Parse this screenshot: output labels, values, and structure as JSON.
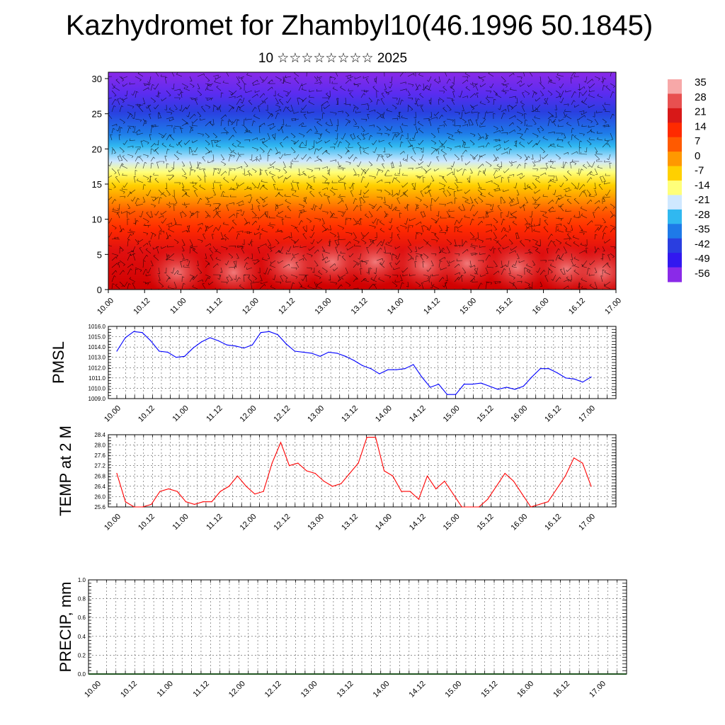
{
  "title": "Kazhydromet for Zhambyl10(46.1996 50.1845)",
  "subtitle": "10 ☆☆☆☆☆☆☆☆ 2025",
  "chart_data": [
    {
      "type": "heatmap",
      "panel": "vertical-profile",
      "ylim": [
        0,
        30
      ],
      "yticks": [
        "0",
        "5",
        "10",
        "15",
        "20",
        "25",
        "30"
      ],
      "xticks": [
        "10.00",
        "10.12",
        "11.00",
        "11.12",
        "12.00",
        "12.12",
        "13.00",
        "13.12",
        "14.00",
        "14.12",
        "15.00",
        "15.12",
        "16.00",
        "16.12",
        "17.00"
      ],
      "colorbar": {
        "labels": [
          "35",
          "28",
          "21",
          "14",
          "7",
          "0",
          "-7",
          "-14",
          "-21",
          "-28",
          "-35",
          "-42",
          "-49",
          "-56"
        ],
        "colors": [
          "#f7a8a8",
          "#e85050",
          "#d81818",
          "#ff2a00",
          "#ff5a00",
          "#ff9800",
          "#ffd000",
          "#ffff7a",
          "#cfe8ff",
          "#30b8f0",
          "#1e7ae8",
          "#2a3ee0",
          "#3218f0",
          "#8a2ae8"
        ]
      }
    },
    {
      "type": "line",
      "panel": "pmsl",
      "ylabel": "PMSL",
      "ylim": [
        1009.0,
        1016.0
      ],
      "yticks": [
        "1016.0",
        "1015.0",
        "1014.0",
        "1013.0",
        "1012.0",
        "1011.0",
        "1010.0",
        "1009.0"
      ],
      "xticks": [
        "10.00",
        "10.12",
        "11.00",
        "11.12",
        "12.00",
        "12.12",
        "13.00",
        "13.12",
        "14.00",
        "14.12",
        "15.00",
        "15.12",
        "16.00",
        "16.12",
        "17.00"
      ],
      "color": "#0000ff",
      "values": [
        1013.6,
        1014.9,
        1015.5,
        1015.4,
        1014.6,
        1013.6,
        1013.5,
        1013.0,
        1013.1,
        1013.9,
        1014.5,
        1014.9,
        1014.6,
        1014.2,
        1014.1,
        1013.9,
        1014.2,
        1015.4,
        1015.5,
        1015.2,
        1014.3,
        1013.6,
        1013.5,
        1013.4,
        1013.1,
        1013.5,
        1013.4,
        1013.1,
        1012.7,
        1012.2,
        1011.9,
        1011.4,
        1011.8,
        1011.8,
        1011.9,
        1012.3,
        1011.1,
        1010.1,
        1010.4,
        1009.4,
        1009.4,
        1010.4,
        1010.4,
        1010.5,
        1010.2,
        1009.9,
        1010.1,
        1009.9,
        1010.2,
        1011.1,
        1011.9,
        1011.9,
        1011.5,
        1011.0,
        1010.9,
        1010.6,
        1011.1
      ]
    },
    {
      "type": "line",
      "panel": "temp2m",
      "ylabel": "TEMP at 2 M",
      "ylim": [
        25.6,
        28.4
      ],
      "yticks": [
        "28.4",
        "28.0",
        "27.6",
        "27.2",
        "26.8",
        "26.4",
        "26.0",
        "25.6"
      ],
      "xticks": [
        "10.00",
        "10.12",
        "11.00",
        "11.12",
        "12.00",
        "12.12",
        "13.00",
        "13.12",
        "14.00",
        "14.12",
        "15.00",
        "15.12",
        "16.00",
        "16.12",
        "17.00"
      ],
      "color": "#ff0000",
      "values": [
        26.9,
        25.8,
        25.6,
        25.6,
        25.7,
        26.2,
        26.3,
        26.2,
        25.8,
        25.7,
        25.8,
        25.8,
        26.2,
        26.4,
        26.8,
        26.4,
        26.1,
        26.2,
        27.3,
        28.1,
        27.2,
        27.3,
        27.0,
        26.9,
        26.6,
        26.4,
        26.5,
        26.9,
        27.3,
        28.3,
        28.3,
        27.0,
        26.8,
        26.2,
        26.2,
        25.9,
        26.8,
        26.3,
        26.6,
        26.1,
        25.6,
        25.6,
        25.6,
        25.9,
        26.4,
        26.9,
        26.6,
        26.1,
        25.6,
        25.7,
        25.8,
        26.3,
        26.8,
        27.5,
        27.3,
        26.4
      ]
    },
    {
      "type": "bar",
      "panel": "precip",
      "ylabel": "PRECIP, mm",
      "ylim": [
        0.0,
        1.0
      ],
      "yticks": [
        "1.0",
        "0.8",
        "0.6",
        "0.4",
        "0.2",
        "0.0"
      ],
      "xticks": [
        "10.00",
        "10.12",
        "11.00",
        "11.12",
        "12.00",
        "12.12",
        "13.00",
        "13.12",
        "14.00",
        "14.12",
        "15.00",
        "15.12",
        "16.00",
        "16.12",
        "17.00"
      ],
      "values": []
    }
  ]
}
